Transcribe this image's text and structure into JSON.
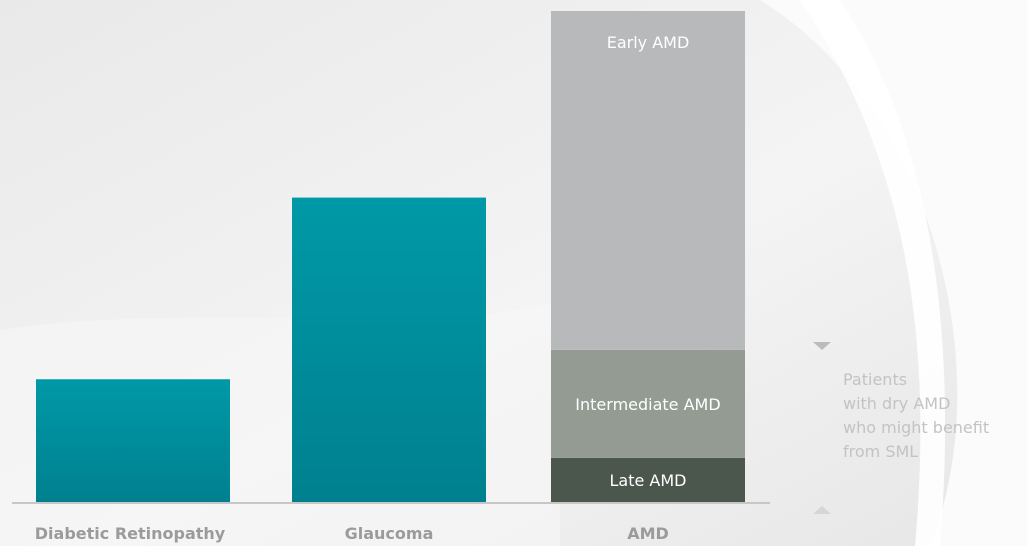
{
  "chart_data": {
    "type": "bar",
    "stacked": true,
    "categories": [
      "Diabetic Retinopathy",
      "Glaucoma",
      "AMD"
    ],
    "ylim": [
      0,
      100
    ],
    "grid": false,
    "values": [
      25,
      62,
      100
    ],
    "stacks": {
      "AMD": [
        {
          "name": "Late AMD",
          "value": 9
        },
        {
          "name": "Intermediate AMD",
          "value": 22
        },
        {
          "name": "Early AMD",
          "value": 69
        }
      ]
    },
    "annotation": [
      "Patients",
      "with dry AMD",
      "who might benefit",
      "from SML"
    ]
  },
  "colors": {
    "teal_top": "#0099a7",
    "teal_bottom": "#00808f",
    "early_amd": "#b8b9bb",
    "intermediate_amd": "#939b93",
    "late_amd": "#4b564c",
    "axis": "#c7c7c7",
    "category_label": "#9b9b9b",
    "annotation": "#c3c3c3"
  }
}
